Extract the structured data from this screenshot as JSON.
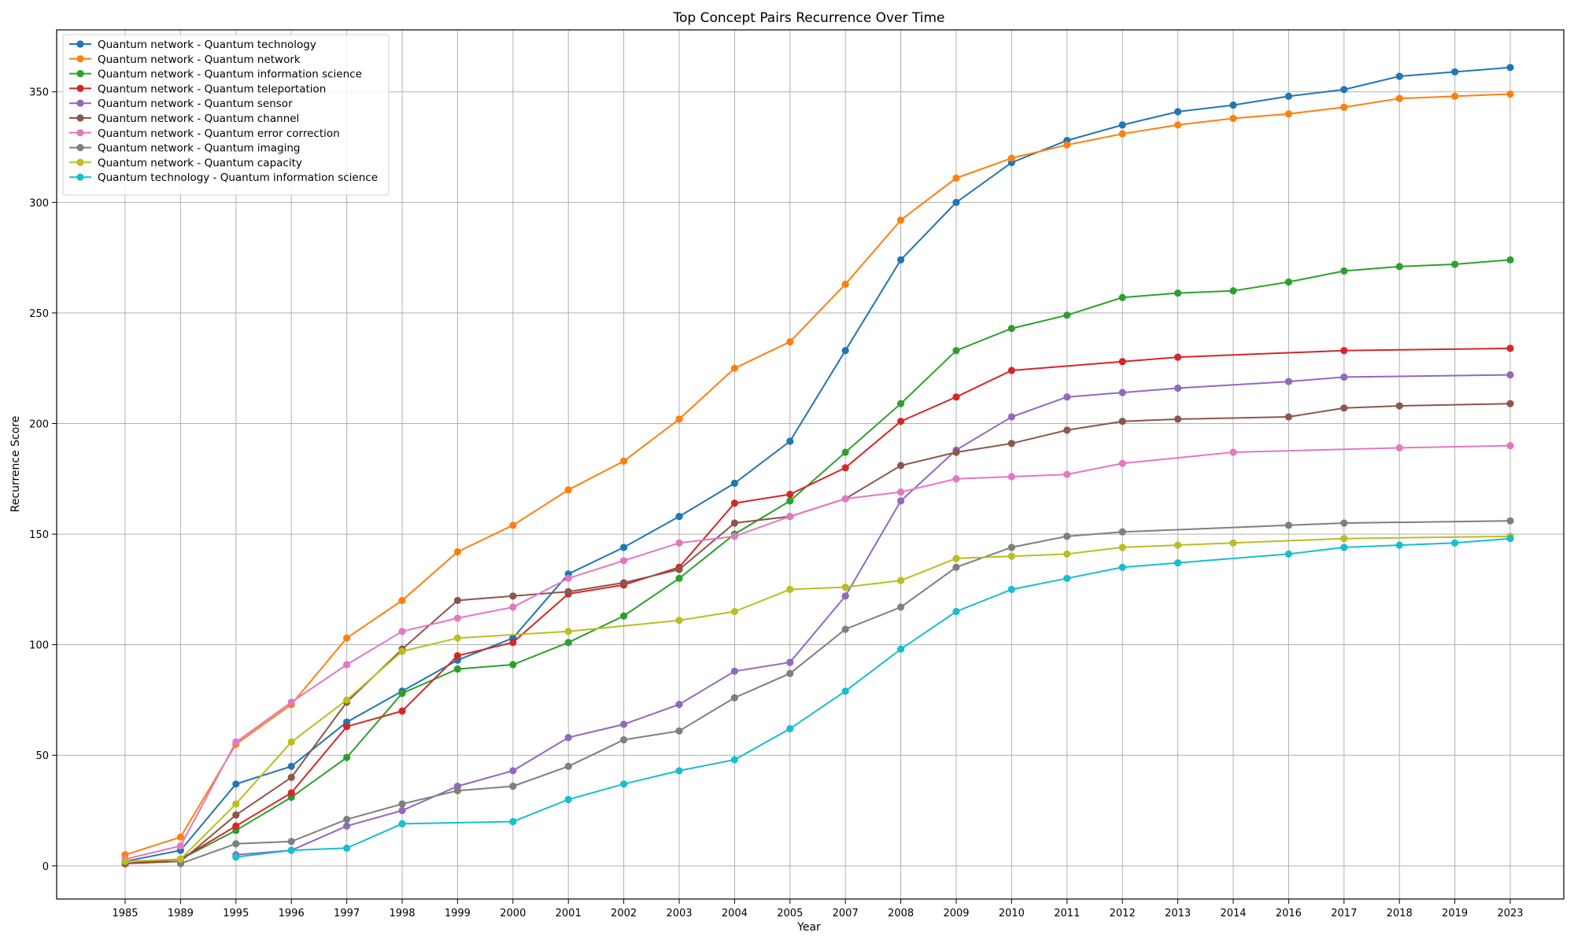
{
  "chart_data": {
    "type": "line",
    "title": "Top Concept Pairs Recurrence Over Time",
    "xlabel": "Year",
    "ylabel": "Recurrence Score",
    "categories": [
      "1985",
      "1989",
      "1995",
      "1996",
      "1997",
      "1998",
      "1999",
      "2000",
      "2001",
      "2002",
      "2003",
      "2004",
      "2005",
      "2007",
      "2008",
      "2009",
      "2010",
      "2011",
      "2012",
      "2013",
      "2014",
      "2016",
      "2017",
      "2018",
      "2019",
      "2023"
    ],
    "ylim": [
      -15,
      378
    ],
    "yticks": [
      0,
      50,
      100,
      150,
      200,
      250,
      300,
      350
    ],
    "grid": true,
    "legend_position": "top-left",
    "series": [
      {
        "name": "Quantum network - Quantum technology",
        "color": "#1f77b4",
        "values": [
          2,
          7,
          37,
          45,
          65,
          79,
          93,
          103,
          132,
          144,
          158,
          173,
          192,
          233,
          274,
          300,
          318,
          328,
          335,
          341,
          344,
          348,
          351,
          357,
          359,
          361
        ]
      },
      {
        "name": "Quantum network - Quantum network",
        "color": "#ff7f0e",
        "values": [
          5,
          13,
          55,
          73,
          103,
          120,
          142,
          154,
          170,
          183,
          202,
          225,
          237,
          263,
          292,
          311,
          320,
          326,
          331,
          335,
          338,
          340,
          343,
          347,
          348,
          349
        ]
      },
      {
        "name": "Quantum network - Quantum information science",
        "color": "#2ca02c",
        "values": [
          1,
          3,
          16,
          31,
          49,
          78,
          89,
          91,
          101,
          113,
          130,
          150,
          165,
          187,
          209,
          233,
          243,
          249,
          257,
          259,
          260,
          264,
          269,
          271,
          272,
          274
        ]
      },
      {
        "name": "Quantum network - Quantum teleportation",
        "color": "#d62728",
        "values": [
          1,
          3,
          18,
          33,
          63,
          70,
          95,
          101,
          123,
          127,
          135,
          164,
          168,
          180,
          201,
          212,
          224,
          null,
          228,
          230,
          null,
          null,
          233,
          null,
          null,
          234
        ]
      },
      {
        "name": "Quantum network - Quantum sensor",
        "color": "#9467bd",
        "values": [
          null,
          null,
          5,
          7,
          18,
          25,
          36,
          43,
          58,
          64,
          73,
          88,
          92,
          122,
          165,
          188,
          203,
          212,
          214,
          216,
          null,
          219,
          221,
          null,
          null,
          222
        ]
      },
      {
        "name": "Quantum network - Quantum channel",
        "color": "#8c564b",
        "values": [
          1,
          2,
          23,
          40,
          74,
          98,
          120,
          122,
          124,
          128,
          134,
          155,
          158,
          166,
          181,
          187,
          191,
          197,
          201,
          202,
          null,
          203,
          207,
          208,
          null,
          209
        ]
      },
      {
        "name": "Quantum network - Quantum error correction",
        "color": "#e377c2",
        "values": [
          3,
          9,
          56,
          74,
          91,
          106,
          112,
          117,
          130,
          138,
          146,
          149,
          158,
          166,
          169,
          175,
          176,
          177,
          182,
          null,
          187,
          null,
          null,
          189,
          null,
          190
        ]
      },
      {
        "name": "Quantum network - Quantum imaging",
        "color": "#7f7f7f",
        "values": [
          null,
          1,
          10,
          11,
          21,
          28,
          34,
          36,
          45,
          57,
          61,
          76,
          87,
          107,
          117,
          135,
          144,
          149,
          151,
          null,
          null,
          154,
          155,
          null,
          null,
          156
        ]
      },
      {
        "name": "Quantum network - Quantum capacity",
        "color": "#bcbd22",
        "values": [
          2,
          3,
          28,
          56,
          75,
          97,
          103,
          null,
          106,
          null,
          111,
          115,
          125,
          126,
          129,
          139,
          140,
          141,
          144,
          145,
          146,
          null,
          148,
          null,
          null,
          149
        ]
      },
      {
        "name": "Quantum technology - Quantum information science",
        "color": "#17becf",
        "values": [
          null,
          null,
          4,
          7,
          8,
          19,
          null,
          20,
          30,
          37,
          43,
          48,
          62,
          79,
          98,
          115,
          125,
          130,
          135,
          137,
          null,
          141,
          144,
          145,
          146,
          148
        ]
      }
    ]
  }
}
